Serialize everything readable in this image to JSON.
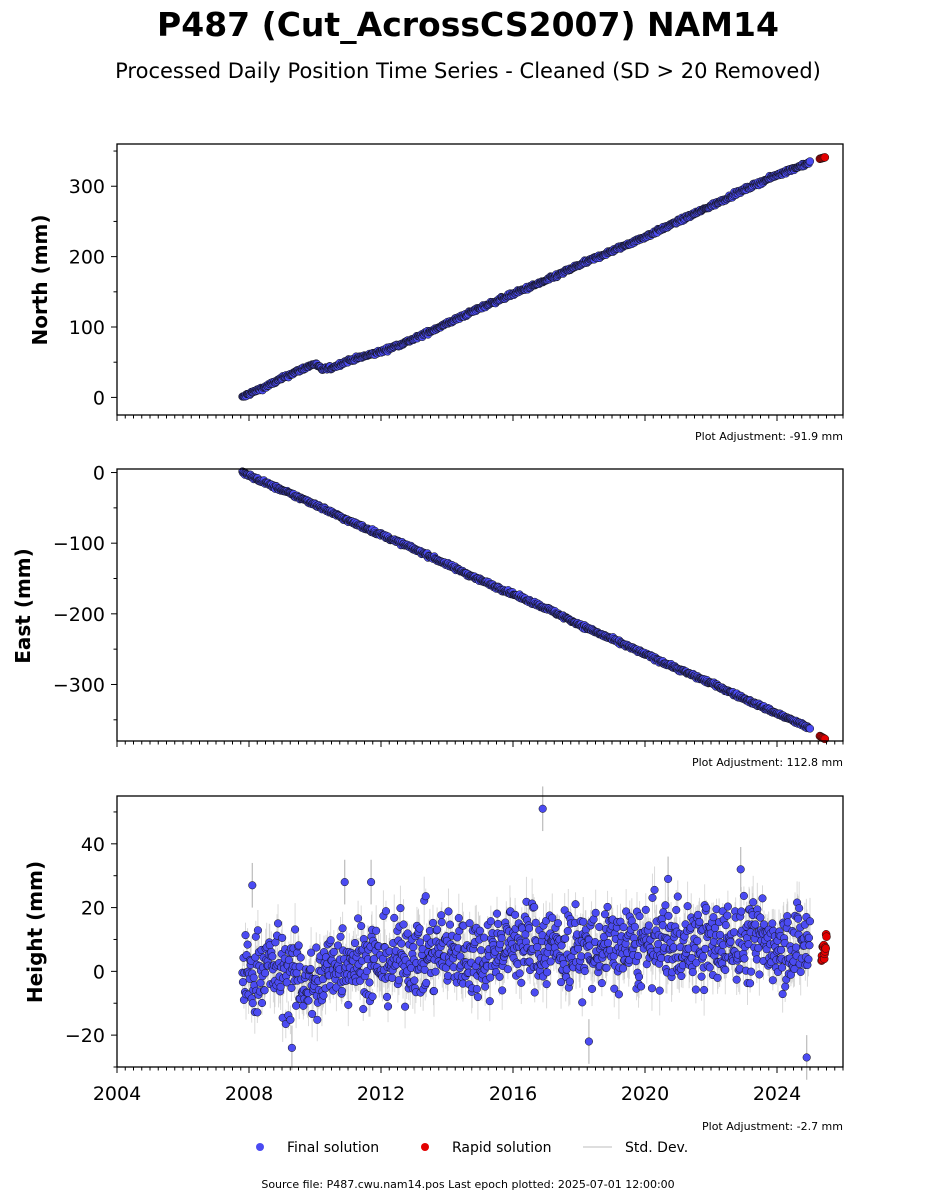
{
  "title": "P487 (Cut_AcrossCS2007) NAM14",
  "subtitle": "Processed Daily Position Time Series - Cleaned (SD > 20 Removed)",
  "footer": "Source file: P487.cwu.nam14.pos  Last epoch plotted: 2025-07-01 12:00:00",
  "legend": [
    {
      "label": "Final solution",
      "color": "#4b4bf2"
    },
    {
      "label": "Rapid solution",
      "color": "#e30000"
    },
    {
      "label": "Std. Dev.",
      "color": "#d3d3d3"
    }
  ],
  "colors": {
    "final": "#4b4bf2",
    "rapid": "#e30000",
    "sd": "#bbbbbb",
    "edge": "#111111"
  },
  "chart_data": [
    {
      "type": "scatter",
      "ylabel": "North (mm)",
      "adjustment": "Plot Adjustment: -91.9 mm",
      "xlim": [
        2004.0,
        2026.0
      ],
      "ylim": [
        -25,
        360
      ],
      "yticks": [
        0,
        100,
        200,
        300
      ],
      "ytick_labels": [
        "0",
        "100",
        "200",
        "300"
      ],
      "series": [
        {
          "name": "Final solution",
          "x": [
            2007.8,
            2008.0,
            2008.5,
            2009.0,
            2009.5,
            2010.0,
            2010.2,
            2010.5,
            2011.0,
            2012.0,
            2013.0,
            2014.0,
            2015.0,
            2016.0,
            2017.0,
            2018.0,
            2019.0,
            2020.0,
            2021.0,
            2022.0,
            2023.0,
            2024.0,
            2025.0
          ],
          "y": [
            0,
            5,
            15,
            27,
            38,
            48,
            40,
            42,
            52,
            65,
            83,
            105,
            127,
            147,
            166,
            188,
            208,
            228,
            250,
            272,
            295,
            316,
            334
          ]
        },
        {
          "name": "Rapid solution",
          "x": [
            2025.3,
            2025.45
          ],
          "y": [
            339,
            341
          ]
        }
      ]
    },
    {
      "type": "scatter",
      "ylabel": "East (mm)",
      "adjustment": "Plot Adjustment: 112.8 mm",
      "xlim": [
        2004.0,
        2026.0
      ],
      "ylim": [
        -380,
        5
      ],
      "yticks": [
        0,
        -100,
        -200,
        -300
      ],
      "ytick_labels": [
        "0",
        "−100",
        "−200",
        "−300"
      ],
      "series": [
        {
          "name": "Final solution",
          "x": [
            2007.8,
            2009.0,
            2010.0,
            2011.0,
            2012.0,
            2013.0,
            2014.0,
            2015.0,
            2016.0,
            2017.0,
            2018.0,
            2019.0,
            2020.0,
            2021.0,
            2022.0,
            2023.0,
            2024.0,
            2025.0
          ],
          "y": [
            0,
            -25,
            -45,
            -68,
            -88,
            -108,
            -130,
            -152,
            -172,
            -192,
            -215,
            -236,
            -257,
            -278,
            -298,
            -320,
            -341,
            -362
          ]
        },
        {
          "name": "Rapid solution",
          "x": [
            2025.3,
            2025.45
          ],
          "y": [
            -373,
            -377
          ]
        }
      ]
    },
    {
      "type": "scatter",
      "ylabel": "Height (mm)",
      "adjustment": "Plot Adjustment: -2.7 mm",
      "xlim": [
        2004.0,
        2026.0
      ],
      "ylim": [
        -30,
        55
      ],
      "yticks": [
        40,
        20,
        0,
        -20
      ],
      "ytick_labels": [
        "40",
        "20",
        "0",
        "−20"
      ],
      "xticks": [
        2004,
        2008,
        2012,
        2016,
        2020,
        2024
      ],
      "xtick_labels": [
        "2004",
        "2008",
        "2012",
        "2016",
        "2020",
        "2024"
      ],
      "series": [
        {
          "name": "Final solution",
          "x": [
            2007.8,
            2008.5,
            2009.0,
            2009.5,
            2010.0,
            2010.5,
            2011.0,
            2012.0,
            2013.0,
            2014.0,
            2015.0,
            2016.0,
            2017.0,
            2018.0,
            2019.0,
            2020.0,
            2021.0,
            2022.0,
            2023.0,
            2024.0,
            2025.0
          ],
          "y": [
            -3,
            2,
            0,
            -2,
            -5,
            2,
            4,
            3,
            5,
            6,
            5,
            9,
            8,
            7,
            7,
            8,
            9,
            8,
            10,
            9,
            9
          ]
        },
        {
          "name": "Rapid solution",
          "x": [
            2025.35,
            2025.4,
            2025.45,
            2025.5
          ],
          "y": [
            4,
            8,
            6,
            11
          ]
        }
      ],
      "outliers": {
        "x": [
          2008.1,
          2009.3,
          2010.9,
          2011.7,
          2016.9,
          2018.3,
          2020.7,
          2022.9,
          2024.9
        ],
        "y": [
          27,
          -24,
          28,
          28,
          51,
          -22,
          29,
          32,
          -27
        ]
      }
    }
  ]
}
